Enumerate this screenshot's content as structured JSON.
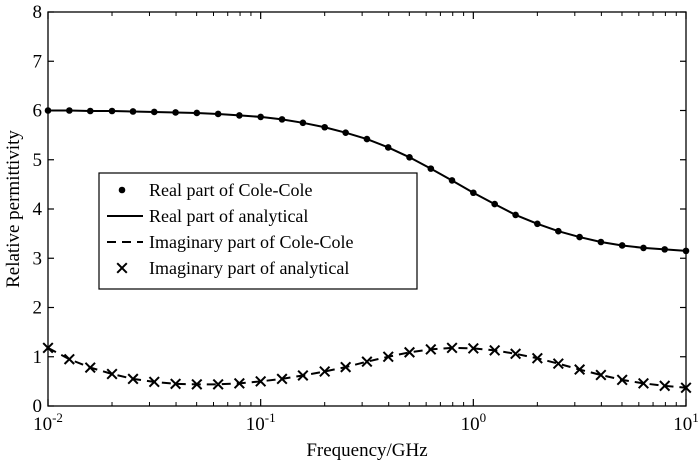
{
  "chart_data": {
    "type": "line",
    "xscale": "log",
    "xlim": [
      0.01,
      10
    ],
    "ylim": [
      0,
      8
    ],
    "xlabel": "Frequency/GHz",
    "ylabel": "Relative permittivity",
    "x_ticks": [
      {
        "value": 0.01,
        "base": "10",
        "exp": "-2"
      },
      {
        "value": 0.1,
        "base": "10",
        "exp": "-1"
      },
      {
        "value": 1,
        "base": "10",
        "exp": "0"
      },
      {
        "value": 10,
        "base": "10",
        "exp": "1"
      }
    ],
    "y_ticks": [
      "0",
      "1",
      "2",
      "3",
      "4",
      "5",
      "6",
      "7",
      "8"
    ],
    "legend_position": "center-left",
    "x": [
      0.01,
      0.0126,
      0.0158,
      0.02,
      0.0251,
      0.0316,
      0.0398,
      0.0501,
      0.0631,
      0.0794,
      0.1,
      0.126,
      0.158,
      0.2,
      0.251,
      0.316,
      0.398,
      0.501,
      0.631,
      0.794,
      1.0,
      1.26,
      1.58,
      2.0,
      2.51,
      3.16,
      3.98,
      5.01,
      6.31,
      7.94,
      10.0
    ],
    "series": [
      {
        "name": "Real part of Cole-Cole",
        "marker": "dot",
        "values": [
          6.0,
          6.0,
          5.99,
          5.99,
          5.98,
          5.97,
          5.96,
          5.95,
          5.93,
          5.9,
          5.87,
          5.82,
          5.75,
          5.66,
          5.55,
          5.42,
          5.25,
          5.05,
          4.82,
          4.58,
          4.33,
          4.1,
          3.88,
          3.7,
          3.55,
          3.43,
          3.33,
          3.26,
          3.21,
          3.18,
          3.15
        ]
      },
      {
        "name": "Real part of analytical",
        "line": "solid",
        "values": [
          6.0,
          6.0,
          5.99,
          5.99,
          5.98,
          5.97,
          5.96,
          5.95,
          5.93,
          5.9,
          5.87,
          5.82,
          5.75,
          5.66,
          5.55,
          5.42,
          5.25,
          5.05,
          4.82,
          4.58,
          4.33,
          4.1,
          3.88,
          3.7,
          3.55,
          3.43,
          3.33,
          3.26,
          3.21,
          3.18,
          3.15
        ]
      },
      {
        "name": "Imaginary part of Cole-Cole",
        "line": "dashed",
        "values": [
          1.18,
          0.95,
          0.78,
          0.65,
          0.55,
          0.49,
          0.45,
          0.44,
          0.44,
          0.46,
          0.5,
          0.55,
          0.62,
          0.7,
          0.79,
          0.9,
          1.0,
          1.09,
          1.15,
          1.18,
          1.17,
          1.13,
          1.06,
          0.97,
          0.86,
          0.74,
          0.63,
          0.53,
          0.46,
          0.41,
          0.37
        ]
      },
      {
        "name": "Imaginary part of analytical",
        "marker": "x",
        "values": [
          1.18,
          0.95,
          0.78,
          0.65,
          0.55,
          0.49,
          0.45,
          0.44,
          0.44,
          0.46,
          0.5,
          0.55,
          0.62,
          0.7,
          0.79,
          0.9,
          1.0,
          1.09,
          1.15,
          1.18,
          1.17,
          1.13,
          1.06,
          0.97,
          0.86,
          0.74,
          0.63,
          0.53,
          0.46,
          0.41,
          0.37
        ]
      }
    ]
  }
}
